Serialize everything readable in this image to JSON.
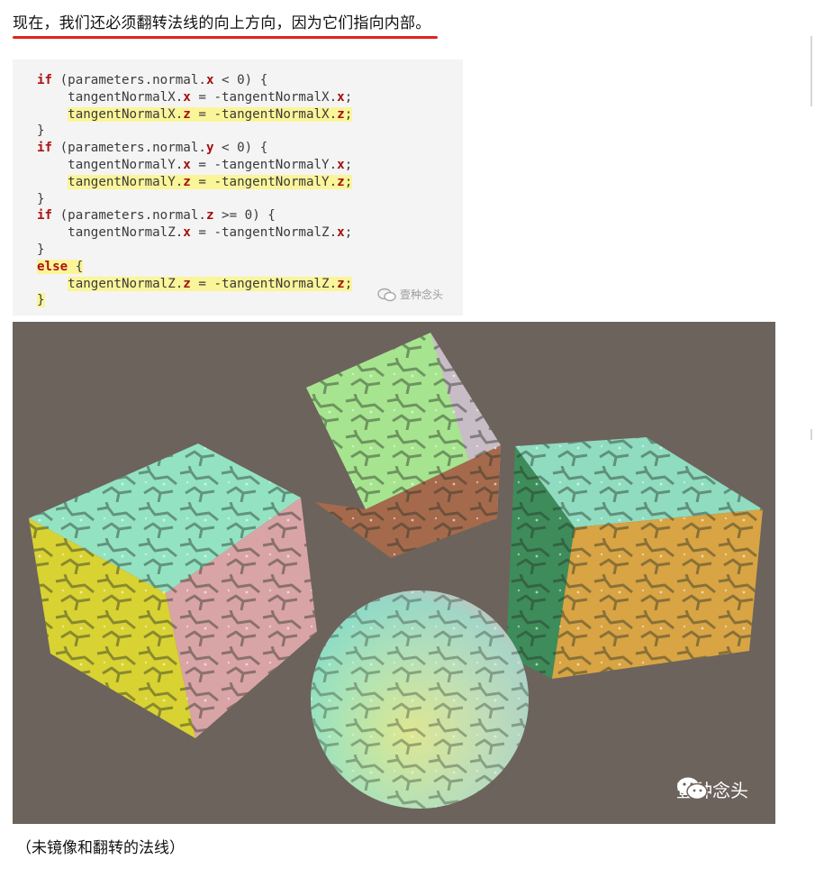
{
  "heading": "现在，我们还必须翻转法线的向上方向，因为它们指向内部。",
  "code_lines": [
    {
      "parts": [
        [
          "kw",
          "if"
        ],
        [
          "txt",
          " (parameters.normal."
        ],
        [
          "var",
          "x"
        ],
        [
          "txt",
          " < "
        ],
        [
          "num",
          "0"
        ],
        [
          "txt",
          ") {"
        ]
      ],
      "highlight": false
    },
    {
      "parts": [
        [
          "txt",
          "    tangentNormalX."
        ],
        [
          "var",
          "x"
        ],
        [
          "txt",
          " = -tangentNormalX."
        ],
        [
          "var",
          "x"
        ],
        [
          "txt",
          ";"
        ]
      ],
      "highlight": false
    },
    {
      "parts": [
        [
          "txt",
          "    tangentNormalX."
        ],
        [
          "var",
          "z"
        ],
        [
          "txt",
          " = -tangentNormalX."
        ],
        [
          "var",
          "z"
        ],
        [
          "txt",
          ";"
        ]
      ],
      "highlight": true
    },
    {
      "parts": [
        [
          "txt",
          "}"
        ]
      ],
      "highlight": false
    },
    {
      "parts": [
        [
          "kw",
          "if"
        ],
        [
          "txt",
          " (parameters.normal."
        ],
        [
          "var",
          "y"
        ],
        [
          "txt",
          " < "
        ],
        [
          "num",
          "0"
        ],
        [
          "txt",
          ") {"
        ]
      ],
      "highlight": false
    },
    {
      "parts": [
        [
          "txt",
          "    tangentNormalY."
        ],
        [
          "var",
          "x"
        ],
        [
          "txt",
          " = -tangentNormalY."
        ],
        [
          "var",
          "x"
        ],
        [
          "txt",
          ";"
        ]
      ],
      "highlight": false
    },
    {
      "parts": [
        [
          "txt",
          "    tangentNormalY."
        ],
        [
          "var",
          "z"
        ],
        [
          "txt",
          " = -tangentNormalY."
        ],
        [
          "var",
          "z"
        ],
        [
          "txt",
          ";"
        ]
      ],
      "highlight": true
    },
    {
      "parts": [
        [
          "txt",
          "}"
        ]
      ],
      "highlight": false
    },
    {
      "parts": [
        [
          "kw",
          "if"
        ],
        [
          "txt",
          " (parameters.normal."
        ],
        [
          "var",
          "z"
        ],
        [
          "txt",
          " >= "
        ],
        [
          "num",
          "0"
        ],
        [
          "txt",
          ") {"
        ]
      ],
      "highlight": false
    },
    {
      "parts": [
        [
          "txt",
          "    tangentNormalZ."
        ],
        [
          "var",
          "x"
        ],
        [
          "txt",
          " = -tangentNormalZ."
        ],
        [
          "var",
          "x"
        ],
        [
          "txt",
          ";"
        ]
      ],
      "highlight": false
    },
    {
      "parts": [
        [
          "txt",
          "}"
        ]
      ],
      "highlight": false
    },
    {
      "parts": [
        [
          "kw",
          "else"
        ],
        [
          "txt",
          " {"
        ]
      ],
      "highlight": true
    },
    {
      "parts": [
        [
          "txt",
          "    tangentNormalZ."
        ],
        [
          "var",
          "z"
        ],
        [
          "txt",
          " = -tangentNormalZ."
        ],
        [
          "var",
          "z"
        ],
        [
          "txt",
          ";"
        ]
      ],
      "highlight": true
    },
    {
      "parts": [
        [
          "txt",
          "}"
        ]
      ],
      "highlight": true
    }
  ],
  "watermark_small": "壹种念头",
  "watermark_large": "壹种念头",
  "caption": "（未镜像和翻转的法线）",
  "colors": {
    "accent_underline": "#e0231e",
    "highlight": "#fbf59a",
    "keyword": "#b01313",
    "render_background": "#6c635c"
  },
  "icons": [
    "wechat-icon"
  ]
}
